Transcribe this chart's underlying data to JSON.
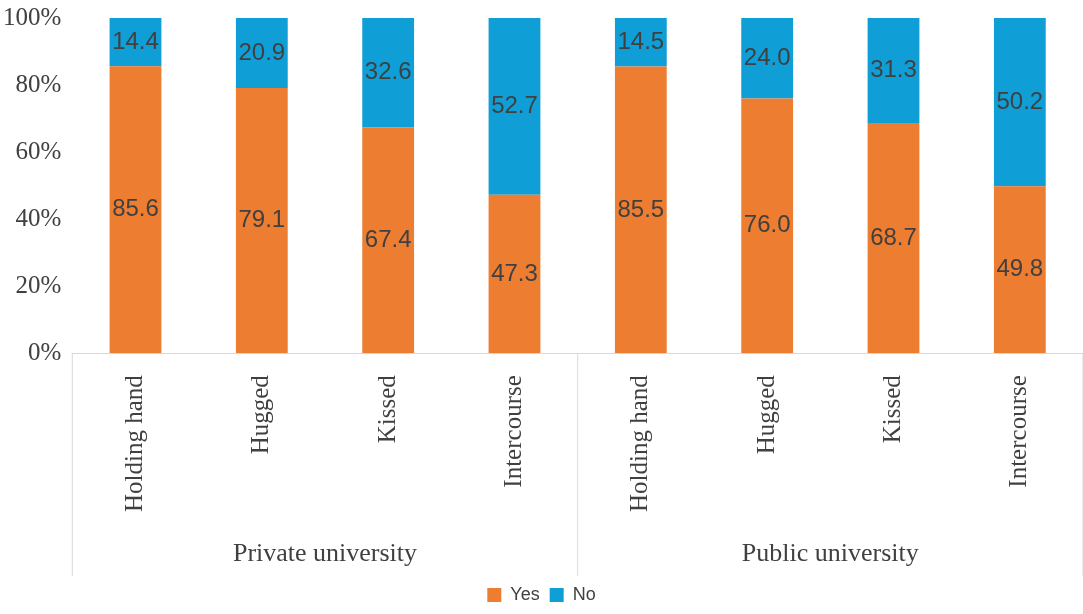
{
  "chart_data": {
    "type": "bar",
    "stacked": true,
    "categories": [
      "Holding hand",
      "Hugged",
      "Kissed",
      "Intercourse",
      "Holding hand",
      "Hugged",
      "Kissed",
      "Intercourse"
    ],
    "series": [
      {
        "name": "Yes",
        "color": "#ed7d31",
        "values": [
          85.6,
          79.1,
          67.4,
          47.3,
          85.5,
          76.0,
          68.7,
          49.8
        ],
        "value_labels": [
          "85.6",
          "79.1",
          "67.4",
          "47.3",
          "85.5",
          "76.0",
          "68.7",
          "49.8"
        ]
      },
      {
        "name": "No",
        "color": "#0f9ed5",
        "values": [
          14.4,
          20.9,
          32.6,
          52.7,
          14.5,
          24.0,
          31.3,
          50.2
        ],
        "value_labels": [
          "14.4",
          "20.9",
          "32.6",
          "52.7",
          "14.5",
          "24.0",
          "31.3",
          "50.2"
        ]
      }
    ],
    "ylim": [
      0,
      100
    ],
    "yticks": [
      {
        "value": 0,
        "label": "0%"
      },
      {
        "value": 20,
        "label": "20%"
      },
      {
        "value": 40,
        "label": "40%"
      },
      {
        "value": 60,
        "label": "60%"
      },
      {
        "value": 80,
        "label": "80%"
      },
      {
        "value": 100,
        "label": "100%"
      }
    ],
    "annotations": [
      "Private university",
      "Public university"
    ],
    "grid": false,
    "legend": "bottom"
  }
}
